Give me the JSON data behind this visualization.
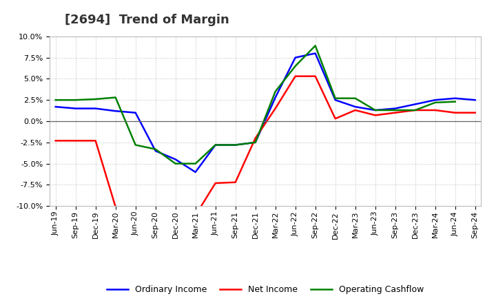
{
  "title": "[2694]  Trend of Margin",
  "x_labels": [
    "Jun-19",
    "Sep-19",
    "Dec-19",
    "Mar-20",
    "Jun-20",
    "Sep-20",
    "Dec-20",
    "Mar-21",
    "Jun-21",
    "Sep-21",
    "Dec-21",
    "Mar-22",
    "Jun-22",
    "Sep-22",
    "Dec-22",
    "Mar-23",
    "Jun-23",
    "Sep-23",
    "Dec-23",
    "Mar-24",
    "Jun-24",
    "Sep-24"
  ],
  "ordinary_income": [
    1.7,
    1.5,
    1.5,
    1.2,
    1.0,
    -3.5,
    -4.5,
    -6.0,
    -2.8,
    -2.8,
    -2.5,
    2.8,
    7.5,
    8.0,
    2.5,
    1.7,
    1.3,
    1.5,
    2.0,
    2.5,
    2.7,
    2.5
  ],
  "net_income": [
    -2.3,
    -2.3,
    -2.3,
    -10.1,
    -10.3,
    -10.3,
    -10.8,
    -11.1,
    -7.3,
    -7.2,
    -2.0,
    1.5,
    5.3,
    5.3,
    0.3,
    1.3,
    0.7,
    1.0,
    1.3,
    1.3,
    1.0,
    1.0
  ],
  "operating_cashflow": [
    2.5,
    2.5,
    2.6,
    2.8,
    -2.8,
    -3.3,
    -5.0,
    -5.0,
    -2.8,
    -2.8,
    -2.5,
    3.5,
    6.5,
    8.9,
    2.7,
    2.7,
    1.3,
    1.3,
    1.3,
    2.2,
    2.3,
    null
  ],
  "ylim": [
    -10.0,
    10.0
  ],
  "yticks": [
    -10.0,
    -7.5,
    -5.0,
    -2.5,
    0.0,
    2.5,
    5.0,
    7.5,
    10.0
  ],
  "colors": {
    "ordinary_income": "#0000ff",
    "net_income": "#ff0000",
    "operating_cashflow": "#008000"
  },
  "background_color": "#ffffff",
  "grid_color": "#bbbbbb",
  "title_fontsize": 13,
  "legend_fontsize": 9,
  "axis_fontsize": 8,
  "linewidth": 1.8
}
